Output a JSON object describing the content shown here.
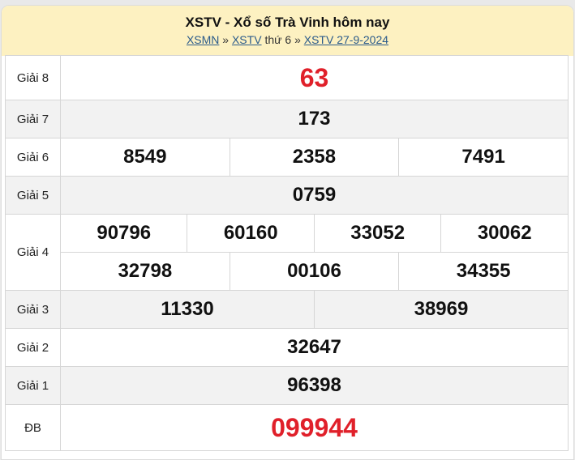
{
  "header": {
    "title": "XSTV - Xổ số Trà Vinh hôm nay",
    "breadcrumb": {
      "link1": "XSMN",
      "sep1": "»",
      "link2": "XSTV",
      "text": "thứ 6",
      "sep2": "»",
      "link3": "XSTV 27-9-2024"
    }
  },
  "prizes": {
    "g8": {
      "label": "Giải 8",
      "values": [
        "63"
      ]
    },
    "g7": {
      "label": "Giải 7",
      "values": [
        "173"
      ]
    },
    "g6": {
      "label": "Giải 6",
      "values": [
        "8549",
        "2358",
        "7491"
      ]
    },
    "g5": {
      "label": "Giải 5",
      "values": [
        "0759"
      ]
    },
    "g4": {
      "label": "Giải 4",
      "values": [
        "90796",
        "60160",
        "33052",
        "30062",
        "32798",
        "00106",
        "34355"
      ]
    },
    "g3": {
      "label": "Giải 3",
      "values": [
        "11330",
        "38969"
      ]
    },
    "g2": {
      "label": "Giải 2",
      "values": [
        "32647"
      ]
    },
    "g1": {
      "label": "Giải 1",
      "values": [
        "96398"
      ]
    },
    "db": {
      "label": "ĐB",
      "values": [
        "099944"
      ]
    }
  },
  "colors": {
    "header_bg": "#fdf1c1",
    "highlight": "#e0202a",
    "link": "#2a5a8a"
  }
}
